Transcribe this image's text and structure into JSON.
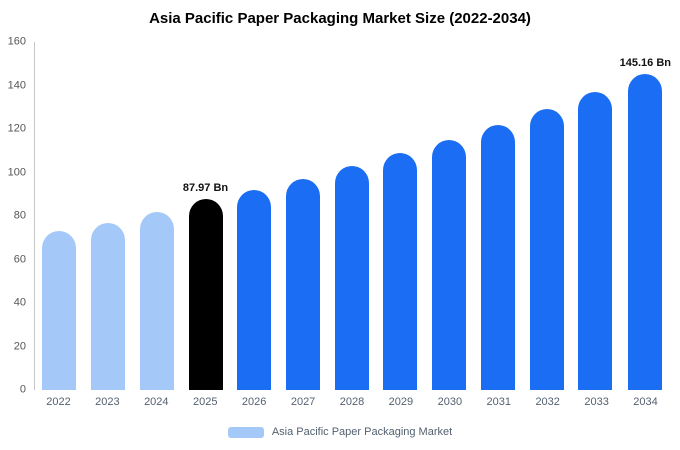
{
  "title": "Asia Pacific Paper Packaging Market Size (2022-2034)",
  "legend": {
    "label": "Asia Pacific Paper Packaging Market",
    "swatch_color": "#a4c8f8"
  },
  "colors": {
    "light_blue": "#a4c8f8",
    "highlight_black": "#000000",
    "blue": "#1b6ef3",
    "axis_line": "#c8c8c8",
    "tick_text": "#555555",
    "x_label_text": "#546170"
  },
  "chart_data": {
    "type": "bar",
    "title": "Asia Pacific Paper Packaging Market Size (2022-2034)",
    "categories": [
      "2022",
      "2023",
      "2024",
      "2025",
      "2026",
      "2027",
      "2028",
      "2029",
      "2030",
      "2031",
      "2032",
      "2033",
      "2034"
    ],
    "values": [
      73,
      77,
      82,
      87.97,
      92,
      97,
      103,
      109,
      115,
      122,
      129,
      137,
      145.16
    ],
    "bar_colors": [
      "#a4c8f8",
      "#a4c8f8",
      "#a4c8f8",
      "#000000",
      "#1b6ef3",
      "#1b6ef3",
      "#1b6ef3",
      "#1b6ef3",
      "#1b6ef3",
      "#1b6ef3",
      "#1b6ef3",
      "#1b6ef3",
      "#1b6ef3"
    ],
    "annotations": [
      {
        "category": "2025",
        "text": "87.97 Bn"
      },
      {
        "category": "2034",
        "text": "145.16 Bn"
      }
    ],
    "xlabel": "",
    "ylabel": "",
    "ylim": [
      0,
      160
    ],
    "yticks": [
      0,
      20,
      40,
      60,
      80,
      100,
      120,
      140,
      160
    ],
    "grid": false,
    "legend_position": "bottom",
    "unit": "Bn"
  }
}
